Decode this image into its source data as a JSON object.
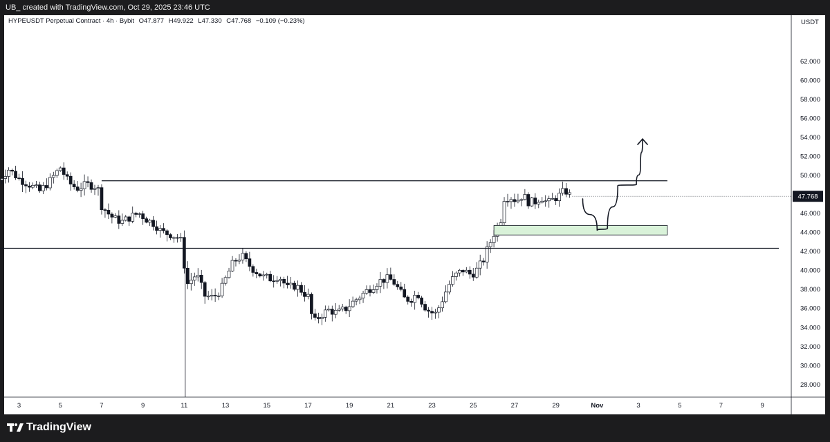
{
  "header": {
    "attribution": "UB_ created with TradingView.com, Oct 29, 2025 23:46 UTC"
  },
  "symbol": {
    "name": "HYPEUSDT Perpetual Contract · 4h · Bybit",
    "open": "O47.877",
    "high": "H49.922",
    "low": "L47.330",
    "close": "C47.768",
    "change": "−0.109 (−0.23%)"
  },
  "price_axis": {
    "currency": "USDT",
    "last_price": "47.768",
    "last_price_color": "#131722"
  },
  "footer": {
    "brand": "TradingView"
  },
  "colors": {
    "background": "#1c1c1e",
    "panel": "#ffffff",
    "candle_up_fill": "#ffffff",
    "candle_down_fill": "#131722",
    "zone_fill": "#d9f2d9",
    "zone_border": "#131722"
  },
  "chart_data": {
    "type": "candlestick",
    "title": "HYPEUSDT Perpetual Contract · 4h · Bybit",
    "timeframe": "4h",
    "y_ticks": [
      "28.000",
      "30.000",
      "32.000",
      "34.000",
      "36.000",
      "38.000",
      "40.000",
      "42.000",
      "44.000",
      "46.000",
      "48.000",
      "50.000",
      "52.000",
      "54.000",
      "56.000",
      "58.000",
      "60.000",
      "62.000"
    ],
    "ylim": [
      27.3,
      64.2
    ],
    "x_ticks": [
      {
        "label": "3",
        "day": 3
      },
      {
        "label": "5",
        "day": 5
      },
      {
        "label": "7",
        "day": 7
      },
      {
        "label": "9",
        "day": 9
      },
      {
        "label": "11",
        "day": 11
      },
      {
        "label": "13",
        "day": 13
      },
      {
        "label": "15",
        "day": 15
      },
      {
        "label": "17",
        "day": 17
      },
      {
        "label": "19",
        "day": 19
      },
      {
        "label": "21",
        "day": 21
      },
      {
        "label": "23",
        "day": 23
      },
      {
        "label": "25",
        "day": 25
      },
      {
        "label": "27",
        "day": 27
      },
      {
        "label": "29",
        "day": 29
      },
      {
        "label": "Nov",
        "day": 31
      },
      {
        "label": "3",
        "day": 33
      },
      {
        "label": "5",
        "day": 35
      },
      {
        "label": "7",
        "day": 37
      },
      {
        "label": "9",
        "day": 39
      }
    ],
    "x_unit": "days of October 2025 (Nov 1 = 32)",
    "close_path": [
      [
        2.0,
        49.5
      ],
      [
        2.5,
        50.6
      ],
      [
        3.0,
        49.6
      ],
      [
        3.5,
        49.0
      ],
      [
        4.0,
        48.3
      ],
      [
        4.5,
        49.4
      ],
      [
        5.0,
        50.8
      ],
      [
        5.4,
        49.2
      ],
      [
        5.8,
        48.6
      ],
      [
        6.3,
        49.0
      ],
      [
        6.8,
        48.8
      ],
      [
        7.0,
        46.8
      ],
      [
        7.3,
        46.0
      ],
      [
        7.6,
        45.4
      ],
      [
        8.0,
        45.1
      ],
      [
        8.4,
        45.6
      ],
      [
        8.8,
        46.0
      ],
      [
        9.2,
        45.3
      ],
      [
        9.6,
        44.8
      ],
      [
        9.9,
        44.0
      ],
      [
        10.3,
        43.8
      ],
      [
        10.7,
        43.4
      ],
      [
        10.95,
        42.8
      ],
      [
        11.05,
        38.3
      ],
      [
        11.3,
        38.9
      ],
      [
        11.6,
        39.6
      ],
      [
        12.0,
        37.3
      ],
      [
        12.4,
        37.1
      ],
      [
        12.8,
        38.0
      ],
      [
        13.1,
        39.6
      ],
      [
        13.4,
        40.9
      ],
      [
        13.8,
        41.5
      ],
      [
        14.1,
        40.6
      ],
      [
        14.4,
        40.0
      ],
      [
        14.8,
        39.3
      ],
      [
        15.2,
        39.1
      ],
      [
        15.6,
        39.4
      ],
      [
        16.0,
        38.1
      ],
      [
        16.4,
        38.4
      ],
      [
        16.8,
        37.6
      ],
      [
        17.0,
        37.2
      ],
      [
        17.25,
        34.4
      ],
      [
        17.6,
        35.3
      ],
      [
        18.0,
        35.8
      ],
      [
        18.4,
        35.5
      ],
      [
        18.8,
        35.9
      ],
      [
        19.2,
        36.7
      ],
      [
        19.6,
        37.4
      ],
      [
        20.0,
        38.1
      ],
      [
        20.4,
        38.8
      ],
      [
        20.8,
        39.1
      ],
      [
        21.1,
        38.9
      ],
      [
        21.4,
        37.9
      ],
      [
        21.7,
        36.9
      ],
      [
        22.0,
        37.0
      ],
      [
        22.3,
        37.6
      ],
      [
        22.6,
        36.3
      ],
      [
        22.9,
        35.6
      ],
      [
        23.2,
        35.4
      ],
      [
        23.5,
        36.9
      ],
      [
        23.8,
        38.4
      ],
      [
        24.1,
        39.4
      ],
      [
        24.5,
        40.0
      ],
      [
        24.9,
        39.5
      ],
      [
        25.2,
        40.1
      ],
      [
        25.5,
        41.1
      ],
      [
        25.7,
        42.3
      ],
      [
        25.9,
        43.3
      ],
      [
        26.1,
        44.4
      ],
      [
        26.3,
        44.9
      ],
      [
        26.5,
        47.6
      ],
      [
        26.8,
        47.7
      ],
      [
        27.1,
        47.3
      ],
      [
        27.4,
        47.9
      ],
      [
        27.7,
        47.1
      ],
      [
        28.0,
        47.2
      ],
      [
        28.3,
        47.7
      ],
      [
        28.6,
        47.0
      ],
      [
        28.9,
        47.5
      ],
      [
        29.2,
        47.9
      ],
      [
        29.45,
        48.4
      ],
      [
        29.65,
        47.9
      ],
      [
        29.8,
        47.768
      ]
    ],
    "series": [
      {
        "kind": "horizontal_line",
        "value": 49.4,
        "from_day": 7.0,
        "to_day": 34.4
      },
      {
        "kind": "horizontal_line",
        "value": 42.3,
        "from_day": 1.6,
        "to_day": 39.8
      },
      {
        "kind": "zone",
        "low": 43.7,
        "high": 44.7,
        "from_day": 26.0,
        "to_day": 34.4
      },
      {
        "kind": "projection_path",
        "points": [
          [
            30.3,
            47.5
          ],
          [
            31.0,
            44.2
          ],
          [
            31.5,
            44.4
          ],
          [
            32.0,
            48.9
          ],
          [
            32.9,
            49.0
          ],
          [
            33.1,
            51.0
          ],
          [
            33.2,
            53.8
          ]
        ]
      },
      {
        "kind": "arrow_head",
        "day": 33.2,
        "value": 53.8
      }
    ],
    "grid": false,
    "legend": "none"
  }
}
